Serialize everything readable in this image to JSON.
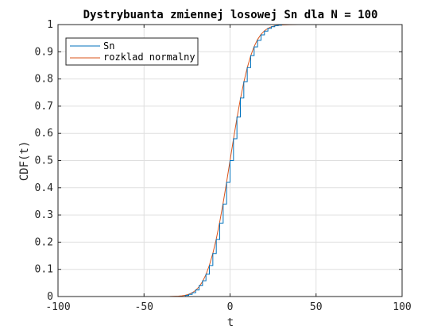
{
  "chart_data": {
    "type": "line",
    "title": "Dystrybuanta zmiennej losowej Sn dla N = 100",
    "xlabel": "t",
    "ylabel": "CDF(t)",
    "xlim": [
      -100,
      100
    ],
    "ylim": [
      0,
      1
    ],
    "xticks": [
      -100,
      -50,
      0,
      50,
      100
    ],
    "xtick_labels": [
      "-100",
      "-50",
      "0",
      "50",
      "100"
    ],
    "yticks": [
      0,
      0.1,
      0.2,
      0.3,
      0.4,
      0.5,
      0.6,
      0.7,
      0.8,
      0.9,
      1
    ],
    "ytick_labels": [
      "0",
      "0.1",
      "0.2",
      "0.3",
      "0.4",
      "0.5",
      "0.6",
      "0.7",
      "0.8",
      "0.9",
      "1"
    ],
    "grid": true,
    "legend_position": "top-left",
    "series": [
      {
        "name": "Sn",
        "color": "#0072BD",
        "style": "step",
        "x": [
          -50,
          -26,
          -24,
          -22,
          -20,
          -18,
          -16,
          -14,
          -12,
          -10,
          -8,
          -6,
          -4,
          -2,
          0,
          2,
          4,
          6,
          8,
          10,
          12,
          14,
          16,
          18,
          20,
          22,
          24,
          26,
          28,
          30,
          100
        ],
        "y": [
          0,
          0.004,
          0.008,
          0.014,
          0.024,
          0.04,
          0.058,
          0.082,
          0.114,
          0.158,
          0.21,
          0.27,
          0.34,
          0.42,
          0.5,
          0.58,
          0.66,
          0.73,
          0.79,
          0.842,
          0.886,
          0.918,
          0.942,
          0.962,
          0.976,
          0.986,
          0.992,
          0.996,
          0.998,
          1,
          1
        ]
      },
      {
        "name": "rozklad normalny",
        "color": "#D95319",
        "style": "line",
        "x": [
          -100,
          -40,
          -35,
          -30,
          -28,
          -26,
          -24,
          -22,
          -20,
          -18,
          -16,
          -14,
          -12,
          -10,
          -8,
          -6,
          -4,
          -2,
          0,
          2,
          4,
          6,
          8,
          10,
          12,
          14,
          16,
          18,
          20,
          22,
          24,
          26,
          28,
          30,
          35,
          40,
          100
        ],
        "y": [
          0,
          0,
          0.0002,
          0.0013,
          0.0026,
          0.0047,
          0.0082,
          0.0139,
          0.0228,
          0.0359,
          0.0548,
          0.0808,
          0.1151,
          0.1587,
          0.2119,
          0.2743,
          0.3446,
          0.4207,
          0.5,
          0.5793,
          0.6554,
          0.7257,
          0.7881,
          0.8413,
          0.8849,
          0.9192,
          0.9452,
          0.9641,
          0.9772,
          0.9861,
          0.9918,
          0.9953,
          0.9974,
          0.9987,
          0.9998,
          1,
          1
        ]
      }
    ]
  }
}
